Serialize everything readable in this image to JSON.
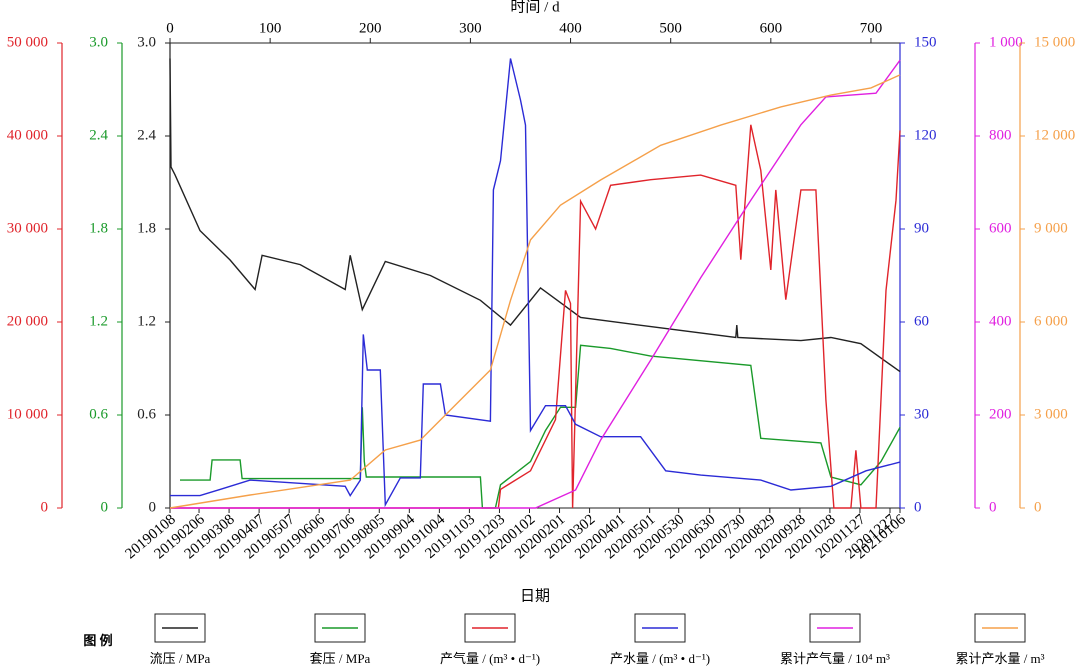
{
  "chart_data": {
    "type": "line",
    "top_xlabel": "时间 / d",
    "xlabel": "日期",
    "legend_title": "图 例",
    "xlim": [
      0,
      729
    ],
    "xticks": [
      0,
      100,
      200,
      300,
      400,
      500,
      600,
      700
    ],
    "date_ticks": [
      {
        "value": 0,
        "label": "20190108"
      },
      {
        "value": 29,
        "label": "20190206"
      },
      {
        "value": 59,
        "label": "20190308"
      },
      {
        "value": 89,
        "label": "20190407"
      },
      {
        "value": 119,
        "label": "20190507"
      },
      {
        "value": 149,
        "label": "20190606"
      },
      {
        "value": 179,
        "label": "20190706"
      },
      {
        "value": 209,
        "label": "20190805"
      },
      {
        "value": 239,
        "label": "20190904"
      },
      {
        "value": 269,
        "label": "20191004"
      },
      {
        "value": 299,
        "label": "20191103"
      },
      {
        "value": 329,
        "label": "20191203"
      },
      {
        "value": 359,
        "label": "20200102"
      },
      {
        "value": 389,
        "label": "20200201"
      },
      {
        "value": 419,
        "label": "20200302"
      },
      {
        "value": 449,
        "label": "20200401"
      },
      {
        "value": 479,
        "label": "20200501"
      },
      {
        "value": 508,
        "label": "20200530"
      },
      {
        "value": 539,
        "label": "20200630"
      },
      {
        "value": 569,
        "label": "20200730"
      },
      {
        "value": 599,
        "label": "20200829"
      },
      {
        "value": 629,
        "label": "20200928"
      },
      {
        "value": 659,
        "label": "20201028"
      },
      {
        "value": 689,
        "label": "20201127"
      },
      {
        "value": 719,
        "label": "20201227"
      },
      {
        "value": 729,
        "label": "20210106"
      }
    ],
    "axes": [
      {
        "color": "#e0242b",
        "lim": [
          0,
          50000
        ],
        "ticks": [
          0,
          {
            "value": 10000,
            "label": "10 000"
          },
          {
            "value": 20000,
            "label": "20 000"
          },
          {
            "value": 30000,
            "label": "30 000"
          },
          {
            "value": 40000,
            "label": "40 000"
          },
          {
            "value": 50000,
            "label": "50 000"
          }
        ]
      },
      {
        "color": "#1a9a2a",
        "lim": [
          0,
          3
        ],
        "ticks": [
          0,
          0.6,
          1.2,
          1.8,
          2.4,
          {
            "value": 3,
            "label": "3.0"
          }
        ]
      },
      {
        "color": "#222222",
        "lim": [
          0,
          3
        ],
        "ticks": [
          0,
          0.6,
          1.2,
          1.8,
          2.4,
          {
            "value": 3,
            "label": "3.0"
          }
        ]
      },
      {
        "color": "#2b2bd6",
        "lim": [
          0,
          150
        ],
        "ticks": [
          0,
          30,
          60,
          90,
          120,
          150
        ]
      },
      {
        "color": "#e020e0",
        "lim": [
          0,
          1000
        ],
        "ticks": [
          0,
          200,
          400,
          600,
          800,
          {
            "value": 1000,
            "label": "1 000"
          }
        ]
      },
      {
        "color": "#f5a04a",
        "lim": [
          0,
          15000
        ],
        "ticks": [
          0,
          {
            "value": 3000,
            "label": "3 000"
          },
          {
            "value": 6000,
            "label": "6 000"
          },
          {
            "value": 9000,
            "label": "9 000"
          },
          {
            "value": 12000,
            "label": "12 000"
          },
          {
            "value": 15000,
            "label": "15 000"
          }
        ]
      }
    ],
    "series": [
      {
        "name": "流压 / MPa",
        "color": "#222222",
        "axis": 2,
        "x": [
          0,
          1,
          5,
          30,
          60,
          85,
          92,
          130,
          175,
          180,
          192,
          215,
          260,
          310,
          340,
          370,
          410,
          480,
          565,
          566,
          567,
          630,
          660,
          690,
          729
        ],
        "values": [
          2.9,
          2.2,
          2.15,
          1.79,
          1.6,
          1.41,
          1.63,
          1.57,
          1.41,
          1.63,
          1.28,
          1.59,
          1.5,
          1.34,
          1.18,
          1.42,
          1.23,
          1.17,
          1.1,
          1.18,
          1.1,
          1.08,
          1.1,
          1.06,
          0.88
        ]
      },
      {
        "name": "套压 / MPa",
        "color": "#1a9a2a",
        "axis": 1,
        "x": [
          10,
          40,
          42,
          70,
          72,
          190,
          192,
          194,
          196,
          310,
          312,
          325,
          330,
          360,
          375,
          390,
          405,
          410,
          440,
          480,
          580,
          590,
          650,
          660,
          690,
          710,
          729
        ],
        "values": [
          0.18,
          0.18,
          0.31,
          0.31,
          0.19,
          0.19,
          0.65,
          0.3,
          0.2,
          0.2,
          0,
          0,
          0.15,
          0.3,
          0.5,
          0.65,
          0.65,
          1.05,
          1.03,
          0.98,
          0.92,
          0.45,
          0.42,
          0.2,
          0.15,
          0.3,
          0.52
        ]
      },
      {
        "name": "产气量 / (m³ • d⁻¹)",
        "color": "#e0242b",
        "axis": 0,
        "x": [
          0,
          328,
          330,
          360,
          385,
          395,
          400,
          402,
          410,
          425,
          440,
          480,
          530,
          565,
          570,
          580,
          590,
          600,
          605,
          615,
          630,
          645,
          655,
          663,
          680,
          685,
          690,
          705,
          715,
          725,
          729
        ],
        "values": [
          0,
          0,
          2000,
          4000,
          9500,
          23400,
          22000,
          0,
          33000,
          30000,
          34700,
          35300,
          35800,
          34700,
          26700,
          41200,
          36300,
          25600,
          34200,
          22400,
          34200,
          34200,
          11600,
          0,
          0,
          6200,
          0,
          0,
          23400,
          33100,
          40600
        ]
      },
      {
        "name": "产水量 / (m³ • d⁻¹)",
        "color": "#2b2bd6",
        "axis": 3,
        "x": [
          0,
          30,
          50,
          80,
          175,
          180,
          190,
          193,
          197,
          210,
          215,
          230,
          250,
          253,
          270,
          275,
          320,
          323,
          330,
          340,
          350,
          355,
          360,
          375,
          395,
          405,
          430,
          470,
          495,
          530,
          590,
          620,
          660,
          695,
          729
        ],
        "values": [
          4,
          4,
          6,
          9,
          7,
          4,
          9,
          56,
          44.5,
          44.5,
          1,
          9.7,
          9.7,
          40,
          40,
          30,
          28,
          102.6,
          112,
          145,
          131.6,
          123.5,
          25,
          33,
          33,
          27,
          23,
          23,
          12,
          10.6,
          9,
          5.8,
          7,
          12,
          14.8
        ]
      },
      {
        "name": "累计产气量 / 10⁴ m³",
        "color": "#e020e0",
        "axis": 4,
        "x": [
          0,
          365,
          405,
          430,
          480,
          530,
          580,
          630,
          655,
          705,
          729
        ],
        "values": [
          0,
          0,
          38.7,
          146,
          318,
          495,
          662,
          824,
          884,
          892,
          963
        ]
      },
      {
        "name": "累计产水量 / m³",
        "color": "#f5a04a",
        "axis": 5,
        "x": [
          0,
          80,
          180,
          215,
          250,
          280,
          320,
          340,
          360,
          390,
          430,
          490,
          550,
          610,
          660,
          700,
          729
        ],
        "values": [
          0,
          420,
          900,
          1870,
          2190,
          3160,
          4450,
          6700,
          8650,
          9770,
          10580,
          11700,
          12350,
          12940,
          13320,
          13550,
          13970
        ]
      }
    ]
  }
}
